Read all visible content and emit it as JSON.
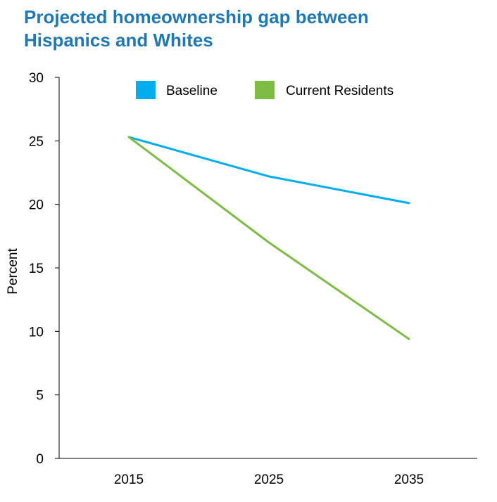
{
  "title_lines": [
    "Projected homeownership gap between",
    "Hispanics and Whites"
  ],
  "chart_data": {
    "type": "line",
    "title": "Projected homeownership gap between Hispanics and Whites",
    "xlabel": "",
    "ylabel": "Percent",
    "categories": [
      "2015",
      "2025",
      "2035"
    ],
    "series": [
      {
        "name": "Baseline",
        "color": "#00aeef",
        "values": [
          25.3,
          22.2,
          20.1
        ]
      },
      {
        "name": "Current Residents",
        "color": "#7dbb42",
        "values": [
          25.3,
          17.0,
          9.4
        ]
      }
    ],
    "ylim": [
      0,
      30
    ],
    "yticks": [
      "0",
      "5",
      "10",
      "15",
      "20",
      "25",
      "30"
    ],
    "grid": false,
    "legend_position": "top"
  }
}
